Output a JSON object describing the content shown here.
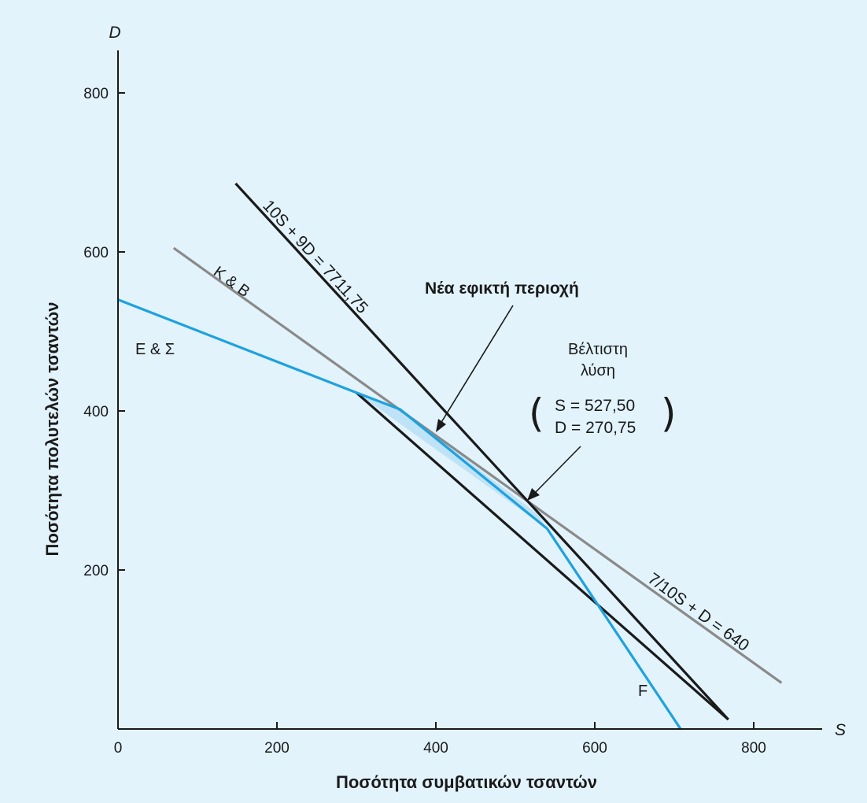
{
  "chart_data": {
    "type": "line",
    "xlabel": "Ποσότητα συμβατικών τσαντών",
    "ylabel": "Ποσότητα πολυτελών τσαντών",
    "x_var": "S",
    "y_var": "D",
    "xlim": [
      0,
      880
    ],
    "ylim": [
      0,
      850
    ],
    "x_ticks": [
      0,
      200,
      400,
      600,
      800
    ],
    "y_ticks": [
      200,
      400,
      600,
      800
    ],
    "grid": false,
    "colors": {
      "background": "#e2f3fc",
      "axis": "#1a1a1a",
      "line_cb": "#8a8a8a",
      "line_es": "#1ea1e0",
      "line_objective": "#1a1a1a",
      "region": "#bfe3f6"
    },
    "series": [
      {
        "name": "Κ & Β",
        "role": "constraint",
        "points": [
          [
            70,
            605
          ],
          [
            835,
            58
          ]
        ]
      },
      {
        "name": "Ε & Σ",
        "role": "constraint",
        "points": [
          [
            0,
            540
          ],
          [
            300,
            423
          ],
          [
            355,
            402
          ],
          [
            540,
            252
          ],
          [
            708,
            0
          ]
        ]
      },
      {
        "name": "10S + 9D = 7711,75",
        "role": "objective",
        "points": [
          [
            148,
            686
          ],
          [
            768,
            12
          ]
        ]
      },
      {
        "name": "F",
        "role": "finishing",
        "points": [
          [
            300,
            423
          ],
          [
            768,
            12
          ]
        ]
      }
    ],
    "feasible_region": [
      [
        300,
        423
      ],
      [
        355,
        402
      ],
      [
        527.5,
        270.75
      ],
      [
        540,
        252
      ]
    ],
    "labels": {
      "cb": "Κ & Β",
      "es": "Ε & Σ",
      "f": "F",
      "objective": "10S + 9D = 7711,75",
      "cb_equation": "7/10S + D = 640",
      "new_region": "Νέα εφικτή περιοχή",
      "optimal_line1": "Βέλτιστη",
      "optimal_line2": "λύση",
      "optimal_s": "S = 527,50",
      "optimal_d": "D = 270,75"
    },
    "optimal": {
      "S": 527.5,
      "D": 270.75
    }
  }
}
